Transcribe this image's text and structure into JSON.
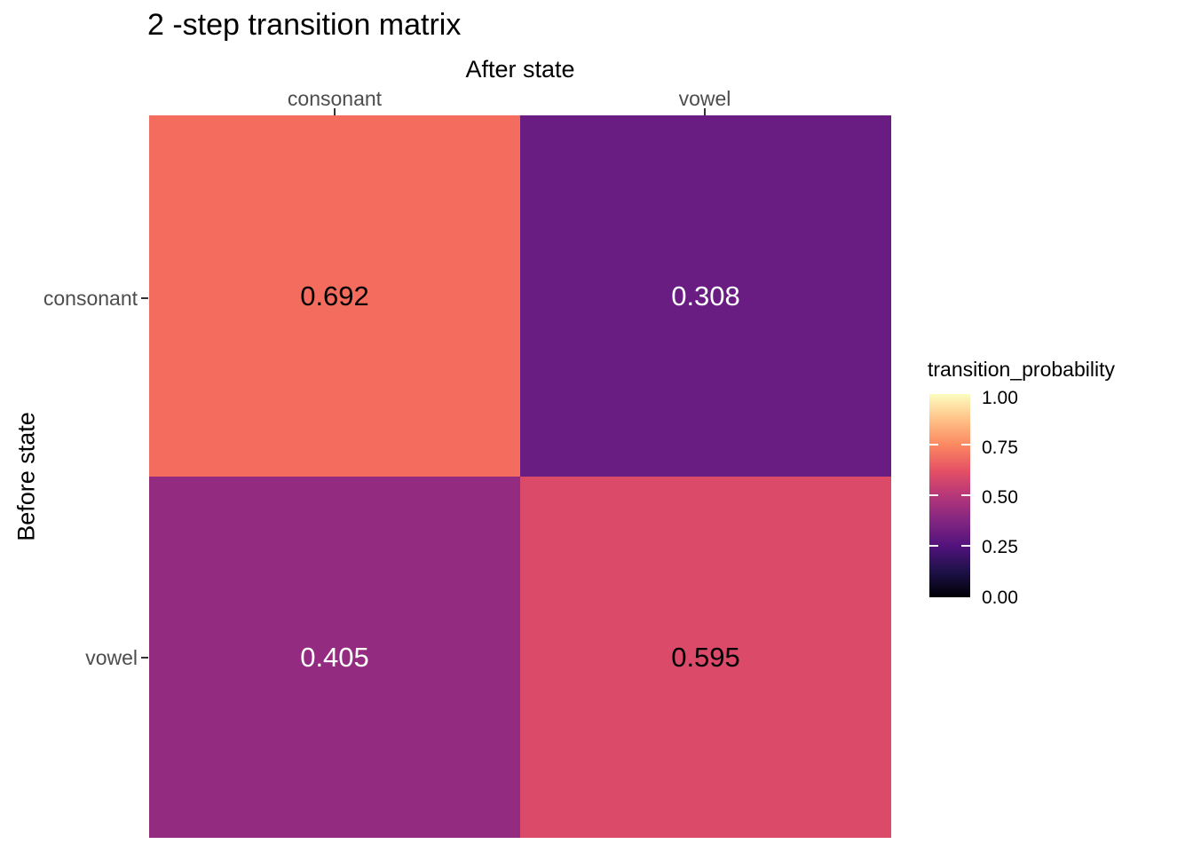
{
  "chart": {
    "title": "2 -step transition matrix",
    "x_axis": {
      "title": "After state",
      "ticks": [
        "consonant",
        "vowel"
      ]
    },
    "y_axis": {
      "title": "Before state",
      "ticks": [
        "consonant",
        "vowel"
      ]
    }
  },
  "legend": {
    "title": "transition_probability",
    "tick_labels": [
      "1.00",
      "0.75",
      "0.50",
      "0.25",
      "0.00"
    ]
  },
  "chart_data": {
    "type": "heatmap",
    "title": "2 -step transition matrix",
    "xlabel": "After state",
    "ylabel": "Before state",
    "x_categories": [
      "consonant",
      "vowel"
    ],
    "y_categories": [
      "consonant",
      "vowel"
    ],
    "values": [
      [
        0.692,
        0.308
      ],
      [
        0.405,
        0.595
      ]
    ],
    "x_axis_position": "top",
    "grid": false,
    "legend_position": "right",
    "legend_title": "transition_probability",
    "legend_ticks": [
      1.0,
      0.75,
      0.5,
      0.25,
      0.0
    ],
    "color_scale": "magma",
    "color_domain": [
      0,
      1
    ],
    "colormap_stops": [
      "#000004",
      "#1D1147",
      "#51127C",
      "#822681",
      "#B63679",
      "#E65164",
      "#FB8861",
      "#FEC287",
      "#FCFDBF"
    ],
    "axis_text_color": "#4D4D4D",
    "tick_mark_color": "#333333",
    "cells": [
      {
        "row": "consonant",
        "col": "consonant",
        "value": 0.692,
        "label": "0.692",
        "bg": "#F36C5E",
        "fg": "#000000"
      },
      {
        "row": "consonant",
        "col": "vowel",
        "value": 0.308,
        "label": "0.308",
        "bg": "#691C81",
        "fg": "#FFFFFF"
      },
      {
        "row": "vowel",
        "col": "consonant",
        "value": 0.405,
        "label": "0.405",
        "bg": "#932C80",
        "fg": "#FFFFFF"
      },
      {
        "row": "vowel",
        "col": "vowel",
        "value": 0.595,
        "label": "0.595",
        "bg": "#DB4A69",
        "fg": "#000000"
      }
    ]
  }
}
